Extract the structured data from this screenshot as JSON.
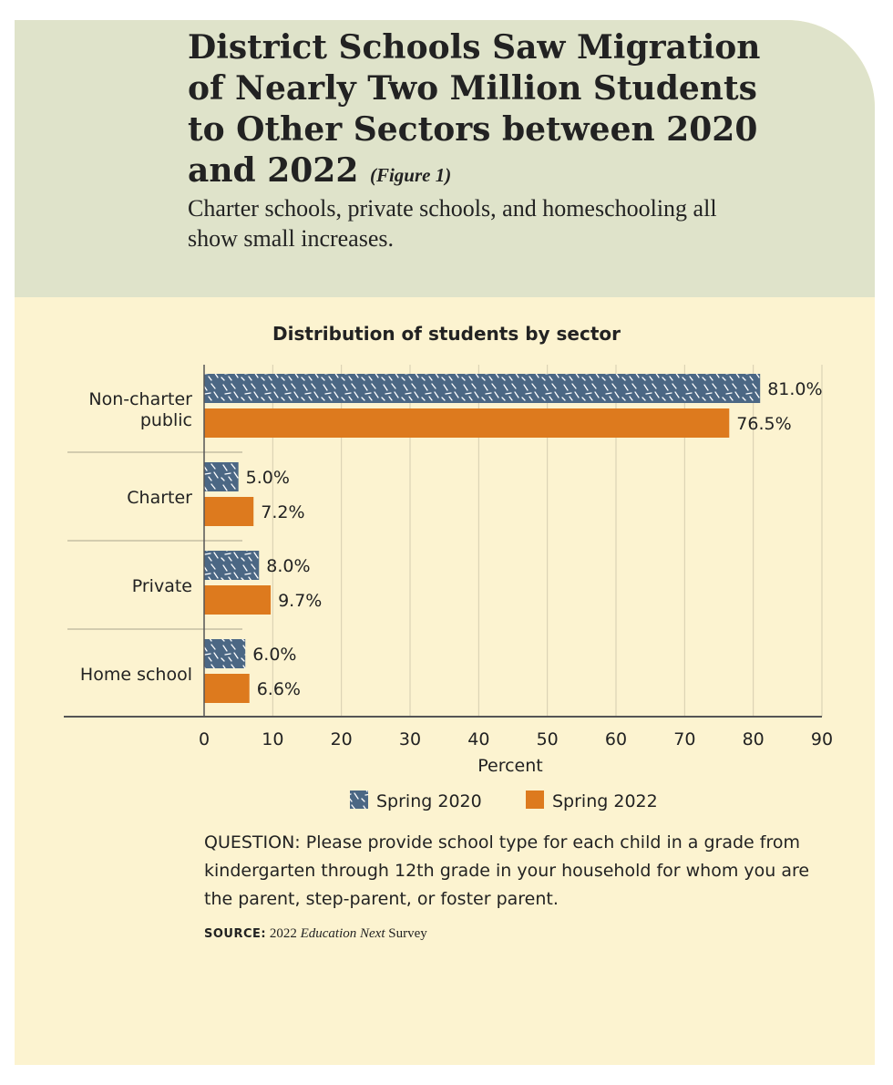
{
  "colors": {
    "header_background": "#dfe3ca",
    "body_background": "#fcf3d0",
    "spring_2020": "#4b6784",
    "spring_2022": "#dd7a1e"
  },
  "figure": {
    "title": "District Schools Saw Migration of  Nearly Two Million Students to Other Sectors between 2020 and 2022",
    "figure_label": "(Figure 1)",
    "subtitle": "Charter schools, private schools, and homeschooling all show small increases."
  },
  "chart_data": {
    "type": "bar",
    "orientation": "horizontal",
    "title": "Distribution of students by sector",
    "categories": [
      "Non-charter public",
      "Charter",
      "Private",
      "Home school"
    ],
    "series": [
      {
        "name": "Spring 2020",
        "values": [
          81.0,
          5.0,
          8.0,
          6.0
        ],
        "labels": [
          "81.0%",
          "5.0%",
          "8.0%",
          "6.0%"
        ],
        "pattern": "hatched"
      },
      {
        "name": "Spring 2022",
        "values": [
          76.5,
          7.2,
          9.7,
          6.6
        ],
        "labels": [
          "76.5%",
          "7.2%",
          "9.7%",
          "6.6%"
        ],
        "pattern": "solid"
      }
    ],
    "xlabel": "Percent",
    "xlim": [
      0,
      90
    ],
    "xticks": [
      0,
      10,
      20,
      30,
      40,
      50,
      60,
      70,
      80,
      90
    ],
    "grid": "vertical",
    "legend_position": "bottom"
  },
  "notes": {
    "question": "QUESTION: Please provide school type for each child in a grade from kindergarten through 12th grade in your household for whom you are the parent, step-parent, or foster parent.",
    "source_label": "SOURCE:",
    "source_year": "2022",
    "source_publication": "Education Next",
    "source_suffix": "Survey"
  }
}
